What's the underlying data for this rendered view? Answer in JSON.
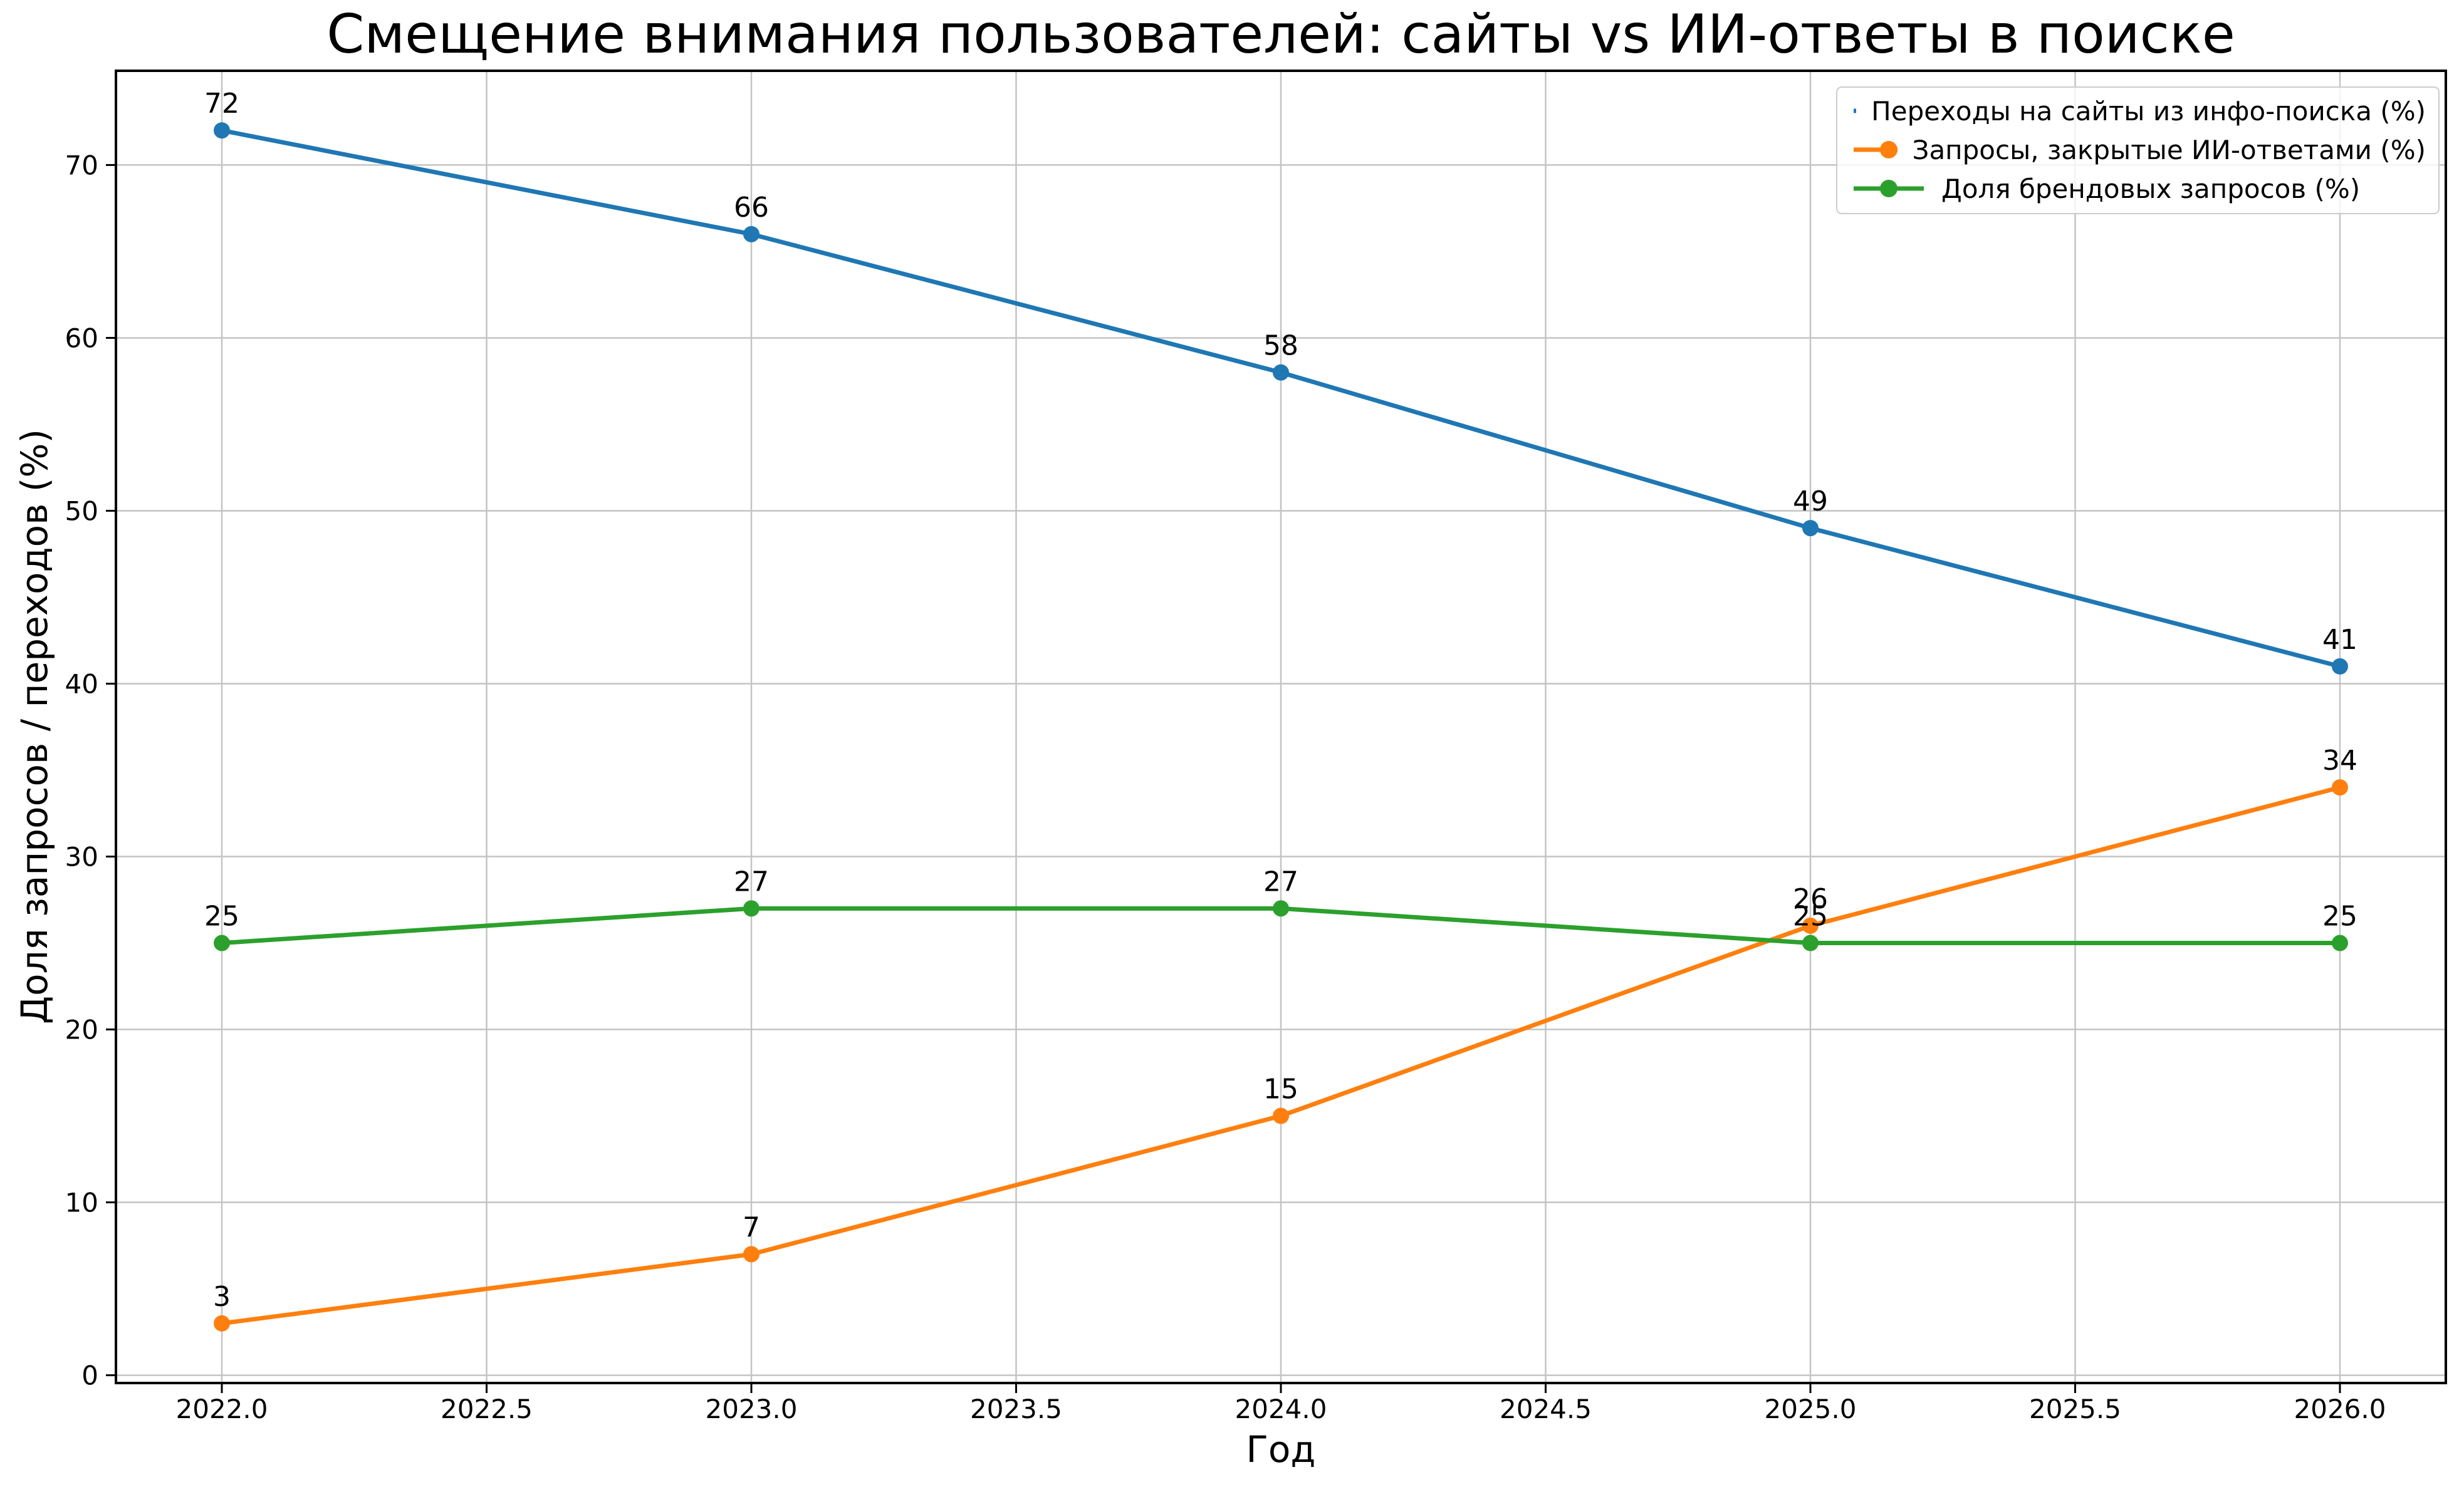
{
  "chart_data": {
    "type": "line",
    "title": "Смещение внимания пользователей: сайты vs ИИ-ответы в поиске",
    "xlabel": "Год",
    "ylabel": "Доля запросов / переходов (%)",
    "x": [
      2022,
      2023,
      2024,
      2025,
      2026
    ],
    "series": [
      {
        "name": "Переходы на сайты из инфо-поиска (%)",
        "color": "#1f77b4",
        "values": [
          72,
          66,
          58,
          49,
          41
        ]
      },
      {
        "name": "Запросы, закрытые ИИ-ответами (%)",
        "color": "#ff7f0e",
        "values": [
          3,
          7,
          15,
          26,
          34
        ]
      },
      {
        "name": "Доля брендовых запросов (%)",
        "color": "#2ca02c",
        "values": [
          25,
          27,
          27,
          25,
          25
        ]
      }
    ],
    "point_labels": [
      "72",
      "66",
      "58",
      "49",
      "41",
      "3",
      "7",
      "15",
      "26",
      "34",
      "25",
      "27",
      "27",
      "25",
      "25"
    ],
    "xlim": [
      2021.8,
      2026.2
    ],
    "ylim": [
      -0.45,
      75.45
    ],
    "x_tick_labels": [
      "2022.0",
      "2022.5",
      "2023.0",
      "2023.5",
      "2024.0",
      "2024.5",
      "2025.0",
      "2025.5",
      "2026.0"
    ],
    "y_tick_labels": [
      "0",
      "10",
      "20",
      "30",
      "40",
      "50",
      "60",
      "70"
    ],
    "grid": true,
    "legend_position": "upper right",
    "colors": {
      "grid": "#c4c4c4",
      "spine": "#000000",
      "background": "#ffffff",
      "text": "#000000",
      "legend_border": "#cccccc"
    }
  }
}
